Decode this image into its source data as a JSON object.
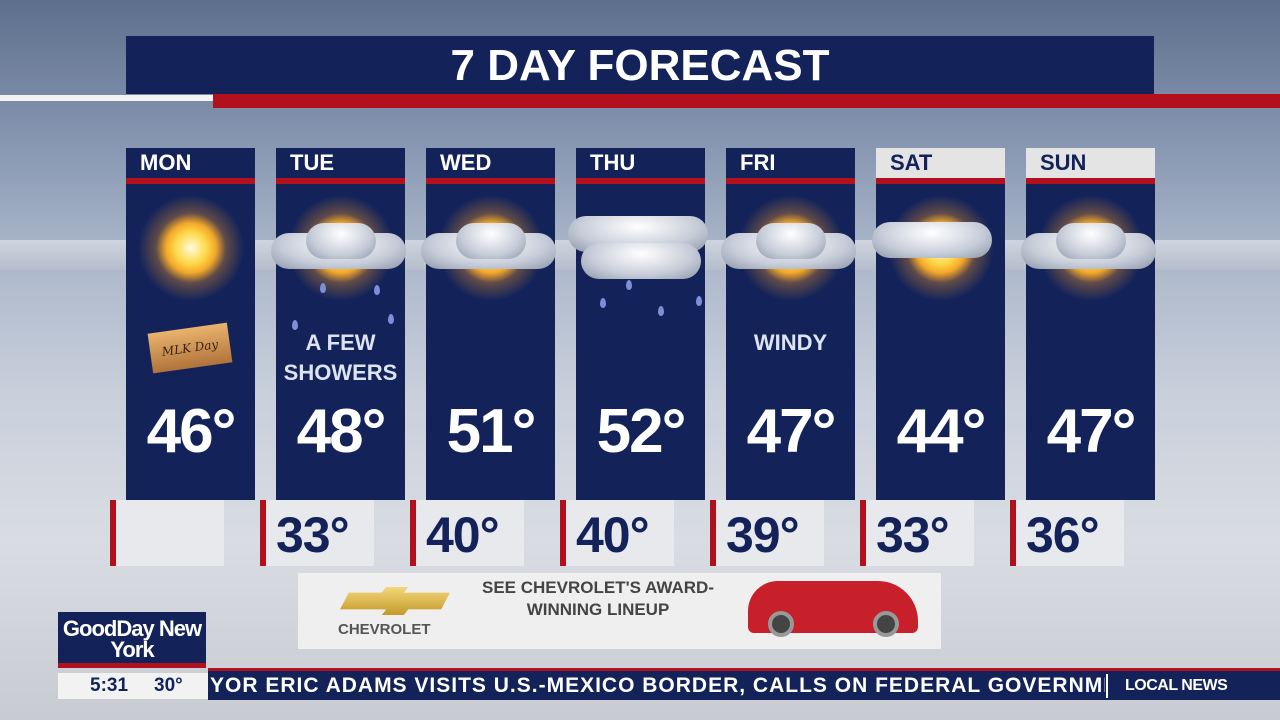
{
  "title": "7 DAY FORECAST",
  "days": [
    {
      "day": "MON",
      "high": "46°",
      "low": "",
      "note": "",
      "banner": "MLK Day",
      "icon": "sunny"
    },
    {
      "day": "TUE",
      "high": "48°",
      "low": "33°",
      "note": "A FEW SHOWERS",
      "icon": "partly-cloudy-showers"
    },
    {
      "day": "WED",
      "high": "51°",
      "low": "40°",
      "note": "",
      "icon": "partly-cloudy"
    },
    {
      "day": "THU",
      "high": "52°",
      "low": "40°",
      "note": "",
      "icon": "rain"
    },
    {
      "day": "FRI",
      "high": "47°",
      "low": "39°",
      "note": "WINDY",
      "icon": "partly-cloudy"
    },
    {
      "day": "SAT",
      "high": "44°",
      "low": "33°",
      "note": "",
      "icon": "mostly-sunny"
    },
    {
      "day": "SUN",
      "high": "47°",
      "low": "36°",
      "note": "",
      "icon": "partly-cloudy"
    }
  ],
  "ad": {
    "text": "SEE CHEVROLET'S AWARD-WINNING LINEUP",
    "brand": "CHEVROLET"
  },
  "station": {
    "logo": "GoodDay New York",
    "time": "5:31",
    "temp": "30°"
  },
  "ticker": {
    "text": "YOR ERIC ADAMS VISITS  U.S.-MEXICO BORDER, CALLS ON FEDERAL GOVERNMEN",
    "label": "LOCAL NEWS"
  },
  "colors": {
    "navy": "#13235a",
    "red": "#b3101e"
  }
}
